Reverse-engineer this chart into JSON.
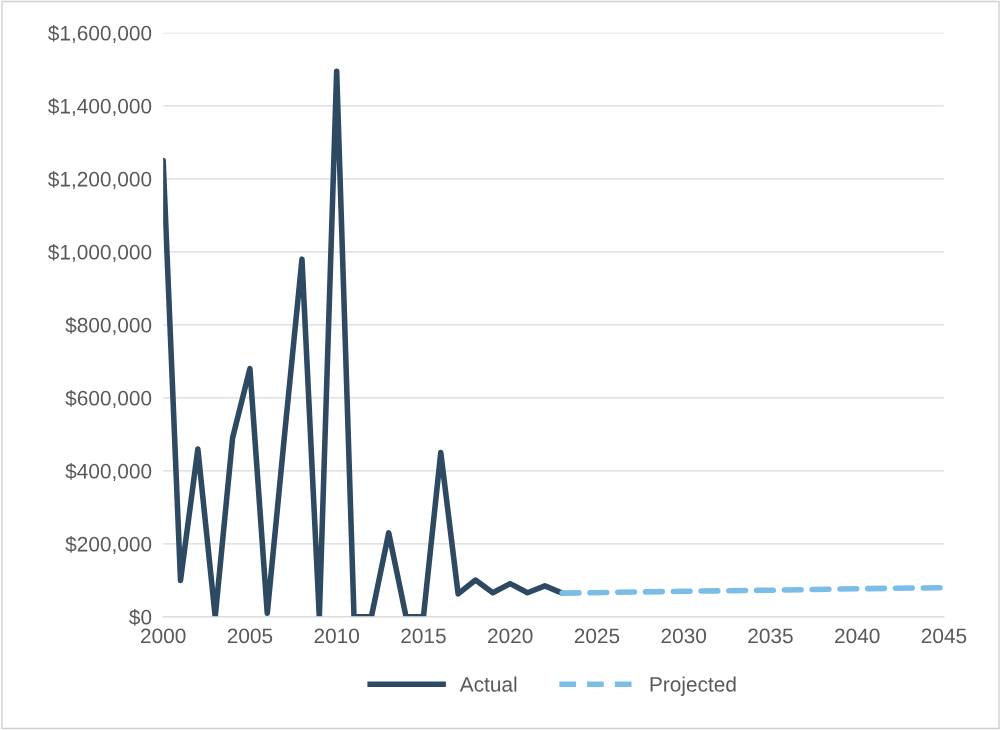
{
  "chart_data": {
    "type": "line",
    "series": [
      {
        "name": "Actual",
        "color": "#2e4a62",
        "line_style": "solid",
        "x": [
          2000,
          2001,
          2002,
          2003,
          2004,
          2005,
          2006,
          2007,
          2008,
          2009,
          2010,
          2011,
          2012,
          2013,
          2014,
          2015,
          2016,
          2017,
          2018,
          2019,
          2020,
          2021,
          2022,
          2023
        ],
        "values": [
          1250000,
          100000,
          460000,
          0,
          490000,
          680000,
          10000,
          500000,
          980000,
          0,
          1495000,
          0,
          0,
          230000,
          0,
          0,
          450000,
          63000,
          101000,
          66000,
          91000,
          66000,
          85000,
          65000
        ]
      },
      {
        "name": "Projected",
        "color": "#7cbde8",
        "line_style": "dashed",
        "x": [
          2023,
          2030,
          2035,
          2040,
          2045
        ],
        "values": [
          65000,
          70000,
          73000,
          77000,
          80000
        ]
      }
    ],
    "xlim": [
      2000,
      2045
    ],
    "xticks": [
      2000,
      2005,
      2010,
      2015,
      2020,
      2025,
      2030,
      2035,
      2040,
      2045
    ],
    "ylim": [
      0,
      1600000
    ],
    "yticks": [
      {
        "value": 0,
        "label": "$0"
      },
      {
        "value": 200000,
        "label": "$200,000"
      },
      {
        "value": 400000,
        "label": "$400,000"
      },
      {
        "value": 600000,
        "label": "$600,000"
      },
      {
        "value": 800000,
        "label": "$800,000"
      },
      {
        "value": 1000000,
        "label": "$1,000,000"
      },
      {
        "value": 1200000,
        "label": "$1,200,000"
      },
      {
        "value": 1400000,
        "label": "$1,400,000"
      },
      {
        "value": 1600000,
        "label": "$1,600,000"
      }
    ],
    "grid": "y",
    "legend": "bottom",
    "marker": "none"
  }
}
